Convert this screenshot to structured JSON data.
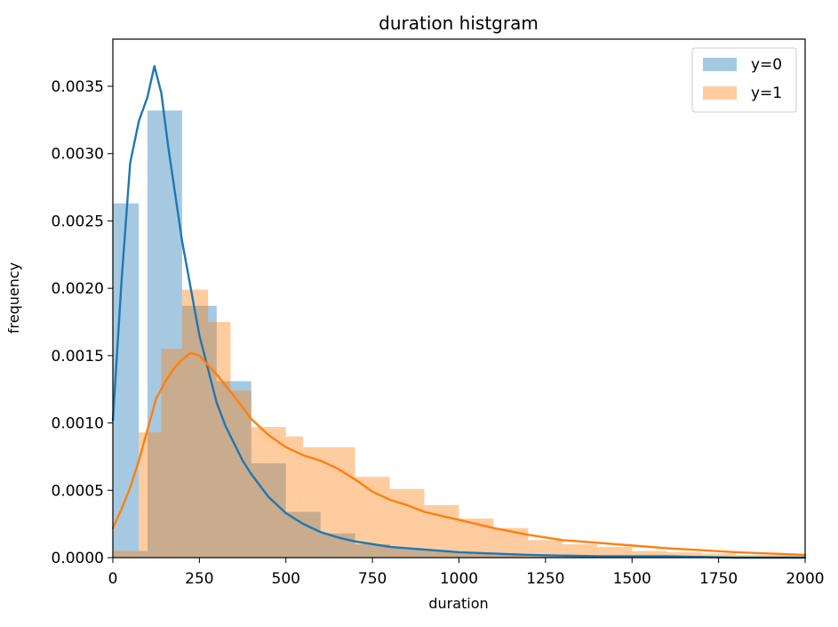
{
  "chart_data": {
    "type": "histogram",
    "title": "duration histgram",
    "xlabel": "duration",
    "ylabel": "frequency",
    "xlim": [
      0,
      2000
    ],
    "ylim": [
      0,
      0.00385
    ],
    "xticks": [
      0,
      250,
      500,
      750,
      1000,
      1250,
      1500,
      1750,
      2000
    ],
    "xtick_labels": [
      "0",
      "250",
      "500",
      "750",
      "1000",
      "1250",
      "1500",
      "1750",
      "2000"
    ],
    "yticks": [
      0,
      0.0005,
      0.001,
      0.0015,
      0.002,
      0.0025,
      0.003,
      0.0035
    ],
    "ytick_labels": [
      "0.0000",
      "0.0005",
      "0.0010",
      "0.0015",
      "0.0020",
      "0.0025",
      "0.0030",
      "0.0035"
    ],
    "grid": false,
    "legend_position": "top-right",
    "series": [
      {
        "name": "y=0",
        "color": "#1f77b4",
        "bar_opacity": 0.4,
        "bins": [
          {
            "x0": 0,
            "x1": 75,
            "y": 0.00263
          },
          {
            "x0": 75,
            "x1": 100,
            "y": 5e-05
          },
          {
            "x0": 100,
            "x1": 200,
            "y": 0.00332
          },
          {
            "x0": 200,
            "x1": 300,
            "y": 0.00187
          },
          {
            "x0": 300,
            "x1": 400,
            "y": 0.00131
          },
          {
            "x0": 400,
            "x1": 500,
            "y": 0.0007
          },
          {
            "x0": 500,
            "x1": 600,
            "y": 0.00034
          },
          {
            "x0": 600,
            "x1": 700,
            "y": 0.00018
          },
          {
            "x0": 700,
            "x1": 800,
            "y": 0.0001
          },
          {
            "x0": 800,
            "x1": 900,
            "y": 7e-05
          },
          {
            "x0": 900,
            "x1": 1000,
            "y": 5e-05
          },
          {
            "x0": 1000,
            "x1": 1100,
            "y": 3e-05
          },
          {
            "x0": 1100,
            "x1": 1200,
            "y": 2e-05
          },
          {
            "x0": 1200,
            "x1": 1300,
            "y": 1e-05
          },
          {
            "x0": 1300,
            "x1": 1400,
            "y": 1e-05
          }
        ],
        "kde": {
          "x": [
            0,
            25,
            50,
            75,
            100,
            120,
            140,
            160,
            180,
            200,
            225,
            250,
            275,
            300,
            325,
            350,
            375,
            400,
            450,
            500,
            550,
            600,
            650,
            700,
            750,
            800,
            900,
            1000,
            1100,
            1200,
            1400,
            1600,
            1800,
            2000
          ],
          "y": [
            0.00102,
            0.00205,
            0.00293,
            0.00324,
            0.00342,
            0.00365,
            0.00345,
            0.00305,
            0.0027,
            0.00235,
            0.002,
            0.00165,
            0.0014,
            0.00115,
            0.00098,
            0.00085,
            0.00072,
            0.00062,
            0.00045,
            0.00033,
            0.00025,
            0.00019,
            0.00015,
            0.00012,
            0.0001,
            8e-05,
            6e-05,
            4e-05,
            3e-05,
            2e-05,
            1e-05,
            1e-05,
            0.0,
            0.0
          ]
        }
      },
      {
        "name": "y=1",
        "color": "#ff7f0e",
        "bar_opacity": 0.4,
        "bins": [
          {
            "x0": 0,
            "x1": 75,
            "y": 5e-05
          },
          {
            "x0": 75,
            "x1": 140,
            "y": 0.00093
          },
          {
            "x0": 140,
            "x1": 200,
            "y": 0.00155
          },
          {
            "x0": 200,
            "x1": 275,
            "y": 0.00199
          },
          {
            "x0": 275,
            "x1": 340,
            "y": 0.00175
          },
          {
            "x0": 340,
            "x1": 400,
            "y": 0.00124
          },
          {
            "x0": 400,
            "x1": 500,
            "y": 0.00097
          },
          {
            "x0": 500,
            "x1": 550,
            "y": 0.0009
          },
          {
            "x0": 550,
            "x1": 700,
            "y": 0.00082
          },
          {
            "x0": 700,
            "x1": 800,
            "y": 0.0006
          },
          {
            "x0": 800,
            "x1": 900,
            "y": 0.00051
          },
          {
            "x0": 900,
            "x1": 1000,
            "y": 0.00039
          },
          {
            "x0": 1000,
            "x1": 1100,
            "y": 0.00029
          },
          {
            "x0": 1100,
            "x1": 1200,
            "y": 0.00022
          },
          {
            "x0": 1200,
            "x1": 1300,
            "y": 0.00013
          },
          {
            "x0": 1300,
            "x1": 1400,
            "y": 0.0001
          },
          {
            "x0": 1400,
            "x1": 1500,
            "y": 8e-05
          },
          {
            "x0": 1500,
            "x1": 1600,
            "y": 5e-05
          },
          {
            "x0": 1600,
            "x1": 1700,
            "y": 4e-05
          },
          {
            "x0": 1700,
            "x1": 1800,
            "y": 3e-05
          },
          {
            "x0": 1800,
            "x1": 1900,
            "y": 2e-05
          },
          {
            "x0": 1900,
            "x1": 2000,
            "y": 2e-05
          }
        ],
        "kde": {
          "x": [
            0,
            25,
            50,
            75,
            100,
            125,
            150,
            175,
            200,
            225,
            250,
            275,
            300,
            325,
            350,
            400,
            450,
            500,
            550,
            600,
            650,
            700,
            750,
            800,
            850,
            900,
            1000,
            1100,
            1200,
            1300,
            1400,
            1500,
            1600,
            1800,
            2000
          ],
          "y": [
            0.00022,
            0.00036,
            0.00052,
            0.00072,
            0.00095,
            0.00118,
            0.0013,
            0.0014,
            0.00147,
            0.00152,
            0.0015,
            0.00143,
            0.00136,
            0.00128,
            0.0012,
            0.00103,
            0.00091,
            0.00082,
            0.00076,
            0.00072,
            0.00066,
            0.00058,
            0.00049,
            0.00043,
            0.00039,
            0.00034,
            0.00028,
            0.00022,
            0.00017,
            0.00013,
            0.00011,
            9e-05,
            7e-05,
            4e-05,
            2e-05
          ]
        }
      }
    ]
  }
}
